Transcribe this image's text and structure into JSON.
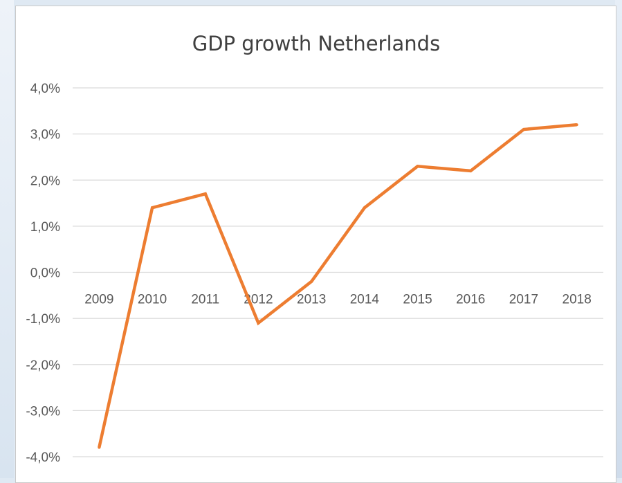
{
  "chart_data": {
    "type": "line",
    "title": "GDP growth Netherlands",
    "xlabel": "",
    "ylabel": "",
    "categories": [
      "2009",
      "2010",
      "2011",
      "2012",
      "2013",
      "2014",
      "2015",
      "2016",
      "2017",
      "2018"
    ],
    "series": [
      {
        "values": [
          -3.8,
          1.4,
          1.7,
          -1.1,
          -0.2,
          1.4,
          2.3,
          2.2,
          3.1,
          3.2
        ],
        "color": "#ed7d31"
      }
    ],
    "y_ticks": [
      "4,0%",
      "3,0%",
      "2,0%",
      "1,0%",
      "0,0%",
      "-1,0%",
      "-2,0%",
      "-3,0%",
      "-4,0%"
    ],
    "ylim": [
      -4.0,
      4.0
    ],
    "grid": true,
    "legend": "none"
  }
}
